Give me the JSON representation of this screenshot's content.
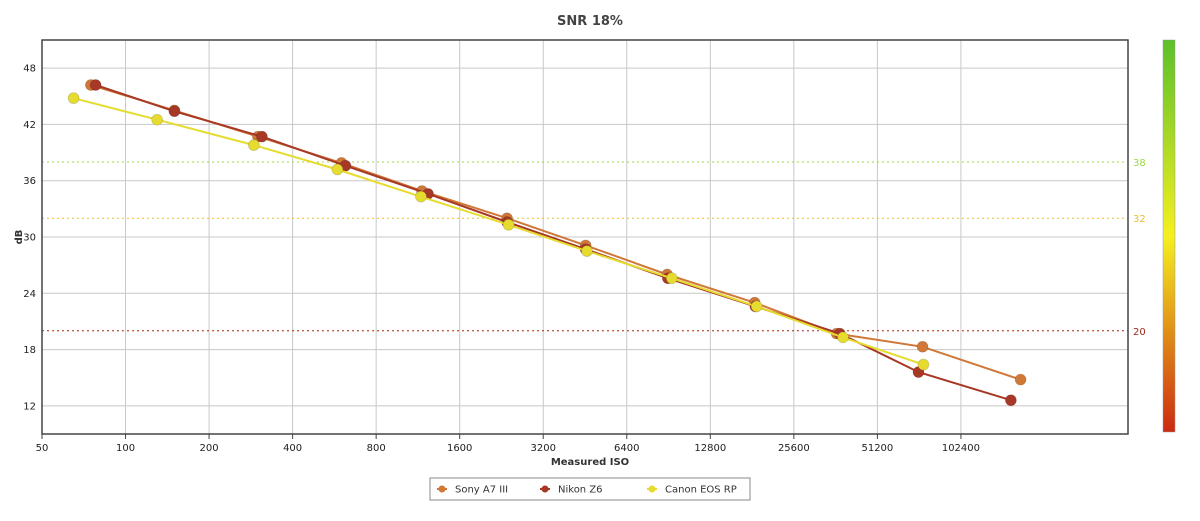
{
  "chart_data": {
    "type": "line",
    "title": "SNR 18%",
    "xlabel": "Measured ISO",
    "ylabel": "dB",
    "x_scale": "log2",
    "xlim": [
      50,
      409600
    ],
    "ylim": [
      9,
      51
    ],
    "x_ticks": [
      50,
      100,
      200,
      400,
      800,
      1600,
      3200,
      6400,
      12800,
      25600,
      51200,
      102400
    ],
    "y_ticks": [
      12,
      18,
      24,
      30,
      36,
      42,
      48
    ],
    "grid": true,
    "legend_position": "bottom-center",
    "reference_lines": [
      {
        "value": 38,
        "label": "38",
        "color": "#9ad94a"
      },
      {
        "value": 32,
        "label": "32",
        "color": "#e8c030"
      },
      {
        "value": 20,
        "label": "20",
        "color": "#a02a1a"
      }
    ],
    "color_bar": {
      "top": "#5cc02a",
      "middle": "#f4f020",
      "bottom": "#cc2a10"
    },
    "series": [
      {
        "name": "Sony A7 III",
        "color": "#d07838",
        "points": [
          [
            75,
            46.2
          ],
          [
            150,
            43.5
          ],
          [
            300,
            40.7
          ],
          [
            600,
            37.9
          ],
          [
            1170,
            34.9
          ],
          [
            2370,
            32.0
          ],
          [
            4550,
            29.1
          ],
          [
            8950,
            26.0
          ],
          [
            18500,
            23.0
          ],
          [
            36500,
            19.7
          ],
          [
            74500,
            18.3
          ],
          [
            168000,
            14.8
          ]
        ]
      },
      {
        "name": "Nikon Z6",
        "color": "#a83826",
        "points": [
          [
            78,
            46.2
          ],
          [
            150,
            43.4
          ],
          [
            310,
            40.7
          ],
          [
            620,
            37.6
          ],
          [
            1230,
            34.6
          ],
          [
            2370,
            31.6
          ],
          [
            4550,
            28.7
          ],
          [
            9000,
            25.6
          ],
          [
            18600,
            22.6
          ],
          [
            37500,
            19.7
          ],
          [
            72000,
            15.6
          ],
          [
            155000,
            12.6
          ]
        ]
      },
      {
        "name": "Canon EOS RP",
        "color": "#e6dc30",
        "points": [
          [
            65,
            44.8
          ],
          [
            130,
            42.5
          ],
          [
            290,
            39.8
          ],
          [
            580,
            37.2
          ],
          [
            1160,
            34.3
          ],
          [
            2400,
            31.3
          ],
          [
            4600,
            28.5
          ],
          [
            9300,
            25.6
          ],
          [
            18800,
            22.6
          ],
          [
            38500,
            19.3
          ],
          [
            75000,
            16.4
          ]
        ]
      }
    ]
  }
}
